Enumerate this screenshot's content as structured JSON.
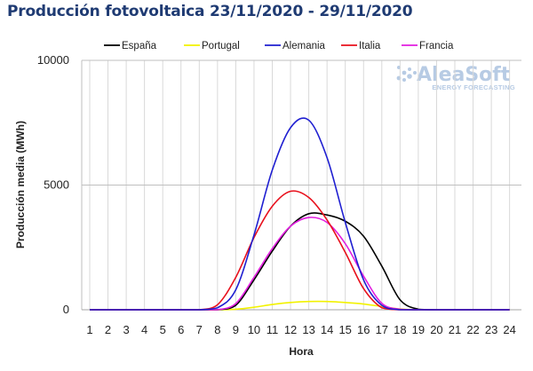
{
  "chart_data": {
    "type": "line",
    "title": "Producción fotovoltaica 23/11/2020 - 29/11/2020",
    "xlabel": "Hora",
    "ylabel": "Producción media (MWh)",
    "x": [
      1,
      2,
      3,
      4,
      5,
      6,
      7,
      8,
      9,
      10,
      11,
      12,
      13,
      14,
      15,
      16,
      17,
      18,
      19,
      20,
      21,
      22,
      23,
      24
    ],
    "xlim": [
      1,
      24
    ],
    "ylim": [
      0,
      10000
    ],
    "yticks": [
      0,
      5000,
      10000
    ],
    "grid": {
      "vertical": true,
      "horizontal": true
    },
    "legend_position": "top",
    "watermark": {
      "main": "AleaSoft",
      "sub": "ENERGY FORECASTING"
    },
    "series": [
      {
        "name": "España",
        "color": "#000000",
        "values": [
          0,
          0,
          0,
          0,
          0,
          0,
          0,
          0,
          180,
          1200,
          2350,
          3350,
          3850,
          3800,
          3550,
          2950,
          1750,
          400,
          20,
          0,
          0,
          0,
          0,
          0
        ]
      },
      {
        "name": "Portugal",
        "color": "#f2f200",
        "values": [
          0,
          0,
          0,
          0,
          0,
          0,
          0,
          0,
          20,
          100,
          210,
          290,
          330,
          330,
          290,
          230,
          130,
          30,
          0,
          0,
          0,
          0,
          0,
          0
        ]
      },
      {
        "name": "Alemania",
        "color": "#1f1fd1",
        "values": [
          0,
          0,
          0,
          0,
          0,
          0,
          0,
          80,
          800,
          3000,
          5600,
          7300,
          7600,
          6100,
          3500,
          1200,
          180,
          0,
          0,
          0,
          0,
          0,
          0,
          0
        ]
      },
      {
        "name": "Italia",
        "color": "#e8101c",
        "values": [
          0,
          0,
          0,
          0,
          0,
          0,
          0,
          200,
          1300,
          2900,
          4150,
          4750,
          4500,
          3600,
          2300,
          850,
          80,
          0,
          0,
          0,
          0,
          0,
          0,
          0
        ]
      },
      {
        "name": "Francia",
        "color": "#e21ee0",
        "values": [
          0,
          0,
          0,
          0,
          0,
          0,
          0,
          0,
          250,
          1300,
          2450,
          3350,
          3700,
          3500,
          2650,
          1350,
          260,
          20,
          0,
          0,
          0,
          0,
          0,
          0
        ]
      }
    ]
  }
}
